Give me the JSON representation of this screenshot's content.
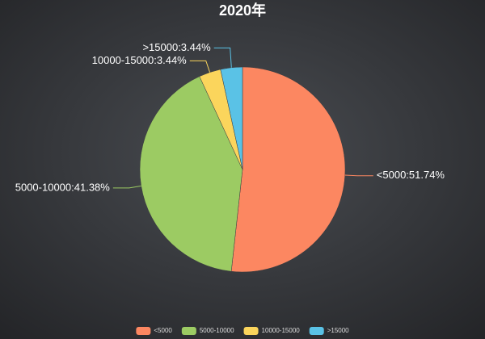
{
  "chart_data": {
    "type": "pie",
    "title": "2020年",
    "categories": [
      "<5000",
      "5000-10000",
      "10000-15000",
      ">15000"
    ],
    "values": [
      51.74,
      41.38,
      3.44,
      3.44
    ],
    "value_labels": [
      "<5000:51.74%",
      "5000-10000:41.38%",
      "10000-15000:3.44%",
      ">15000:3.44%"
    ],
    "colors": [
      "#fc8761",
      "#9ccb63",
      "#fbd55c",
      "#5ac2e6"
    ],
    "legend": "bottom"
  }
}
